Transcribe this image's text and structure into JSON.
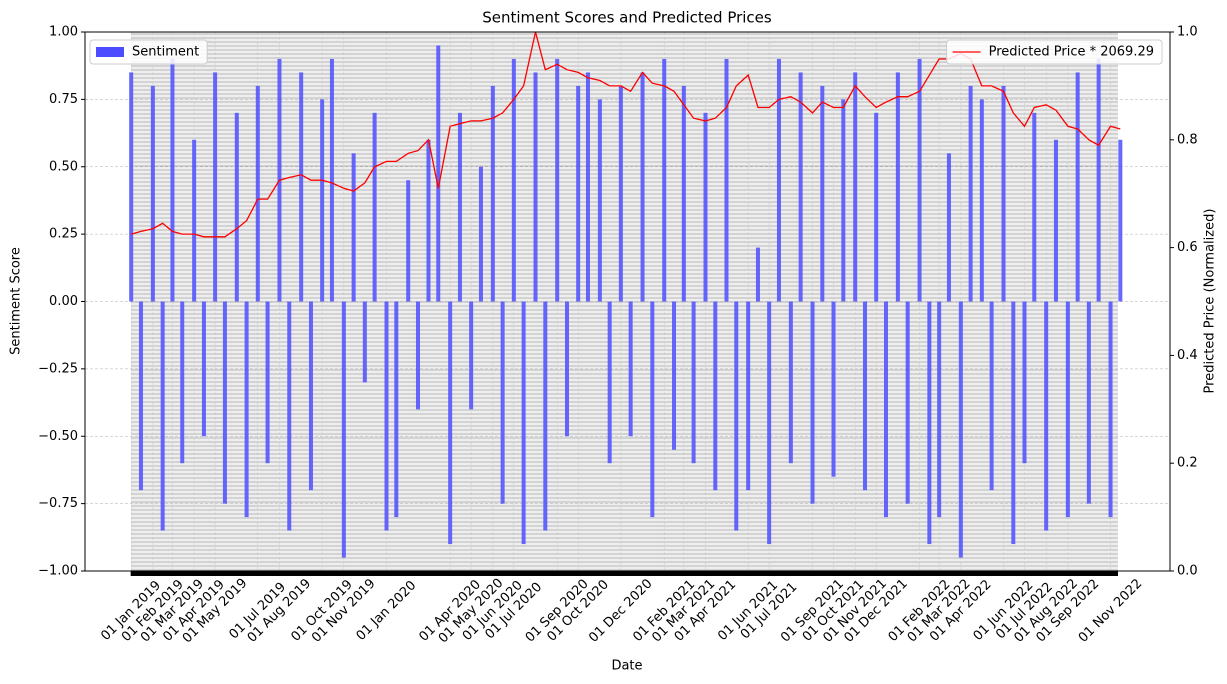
{
  "chart_data": {
    "type": "bar_line",
    "title": "Sentiment Scores and Predicted Prices",
    "xlabel": "Date",
    "ylabel": "Sentiment Score",
    "y2label": "Predicted Price (Normalized)",
    "x": [
      "2019-01-01",
      "2019-01-15",
      "2019-02-01",
      "2019-02-15",
      "2019-03-01",
      "2019-03-15",
      "2019-04-01",
      "2019-04-15",
      "2019-05-01",
      "2019-05-15",
      "2019-06-01",
      "2019-06-15",
      "2019-07-01",
      "2019-07-15",
      "2019-08-01",
      "2019-08-15",
      "2019-09-01",
      "2019-09-15",
      "2019-10-01",
      "2019-10-15",
      "2019-11-01",
      "2019-11-15",
      "2019-12-01",
      "2019-12-15",
      "2020-01-01",
      "2020-01-15",
      "2020-02-01",
      "2020-02-15",
      "2020-03-01",
      "2020-03-15",
      "2020-04-01",
      "2020-04-15",
      "2020-05-01",
      "2020-05-15",
      "2020-06-01",
      "2020-06-15",
      "2020-07-01",
      "2020-07-15",
      "2020-08-01",
      "2020-08-15",
      "2020-09-01",
      "2020-09-15",
      "2020-10-01",
      "2020-10-15",
      "2020-11-01",
      "2020-11-15",
      "2020-12-01",
      "2020-12-15",
      "2021-01-01",
      "2021-01-15",
      "2021-02-01",
      "2021-02-15",
      "2021-03-01",
      "2021-03-15",
      "2021-04-01",
      "2021-04-15",
      "2021-05-01",
      "2021-05-15",
      "2021-06-01",
      "2021-06-15",
      "2021-07-01",
      "2021-07-15",
      "2021-08-01",
      "2021-08-15",
      "2021-09-01",
      "2021-09-15",
      "2021-10-01",
      "2021-10-15",
      "2021-11-01",
      "2021-11-15",
      "2021-12-01",
      "2021-12-15",
      "2022-01-01",
      "2022-01-15",
      "2022-02-01",
      "2022-02-15",
      "2022-03-01",
      "2022-03-15",
      "2022-04-01",
      "2022-04-15",
      "2022-05-01",
      "2022-05-15",
      "2022-06-01",
      "2022-06-15",
      "2022-07-01",
      "2022-07-15",
      "2022-08-01",
      "2022-08-15",
      "2022-09-01",
      "2022-09-15",
      "2022-10-01",
      "2022-10-15",
      "2022-11-01",
      "2022-11-15"
    ],
    "series": [
      {
        "name": "Sentiment",
        "type": "bar",
        "color": "#4d4dff",
        "legend": "upper left",
        "values": [
          0.85,
          -0.7,
          0.8,
          -0.85,
          0.9,
          -0.6,
          0.6,
          -0.5,
          0.85,
          -0.75,
          0.7,
          -0.8,
          0.8,
          -0.6,
          0.9,
          -0.85,
          0.85,
          -0.7,
          0.75,
          0.9,
          -0.95,
          0.55,
          -0.3,
          0.7,
          -0.85,
          -0.8,
          0.45,
          -0.4,
          0.6,
          0.95,
          -0.9,
          0.7,
          -0.4,
          0.5,
          0.8,
          -0.75,
          0.9,
          -0.9,
          0.85,
          -0.85,
          0.9,
          -0.5,
          0.8,
          0.85,
          0.75,
          -0.6,
          0.8,
          -0.5,
          0.85,
          -0.8,
          0.9,
          -0.55,
          0.8,
          -0.6,
          0.7,
          -0.7,
          0.9,
          -0.85,
          -0.7,
          0.2,
          -0.9,
          0.9,
          -0.6,
          0.85,
          -0.75,
          0.8,
          -0.65,
          0.75,
          0.85,
          -0.7,
          0.7,
          -0.8,
          0.85,
          -0.75,
          0.9,
          -0.9,
          -0.8,
          0.55,
          -0.95,
          0.8,
          0.75,
          -0.7,
          0.8,
          -0.9,
          -0.6,
          0.7,
          -0.85,
          0.6,
          -0.8,
          0.85,
          -0.75,
          0.9,
          -0.8,
          0.6
        ]
      },
      {
        "name": "Predicted Price * 2069.29",
        "type": "line",
        "axis": "y2",
        "color": "#ff0000",
        "legend": "upper right",
        "values": [
          0.625,
          0.63,
          0.635,
          0.645,
          0.63,
          0.625,
          0.625,
          0.62,
          0.62,
          0.62,
          0.635,
          0.65,
          0.69,
          0.69,
          0.725,
          0.73,
          0.735,
          0.725,
          0.725,
          0.72,
          0.71,
          0.705,
          0.72,
          0.75,
          0.76,
          0.76,
          0.775,
          0.78,
          0.8,
          0.71,
          0.825,
          0.83,
          0.835,
          0.835,
          0.84,
          0.85,
          0.875,
          0.9,
          1.0,
          0.93,
          0.94,
          0.93,
          0.925,
          0.915,
          0.91,
          0.9,
          0.9,
          0.89,
          0.925,
          0.905,
          0.9,
          0.89,
          0.865,
          0.84,
          0.835,
          0.84,
          0.86,
          0.9,
          0.92,
          0.86,
          0.86,
          0.875,
          0.88,
          0.87,
          0.85,
          0.87,
          0.86,
          0.86,
          0.9,
          0.88,
          0.86,
          0.87,
          0.88,
          0.88,
          0.89,
          0.92,
          0.95,
          0.95,
          0.96,
          0.95,
          0.9,
          0.9,
          0.89,
          0.85,
          0.825,
          0.86,
          0.865,
          0.855,
          0.825,
          0.82,
          0.8,
          0.79,
          0.825,
          0.82
        ]
      }
    ],
    "xlim": [
      "2018-10-27",
      "2023-01-25"
    ],
    "xticks": [
      {
        "value": "2019-01-01",
        "label": "01 Jan 2019"
      },
      {
        "value": "2019-02-01",
        "label": "01 Feb 2019"
      },
      {
        "value": "2019-03-01",
        "label": "01 Mar 2019"
      },
      {
        "value": "2019-04-01",
        "label": "01 Apr 2019"
      },
      {
        "value": "2019-05-01",
        "label": "01 May 2019"
      },
      {
        "value": "2019-07-01",
        "label": "01 Jul 2019"
      },
      {
        "value": "2019-08-01",
        "label": "01 Aug 2019"
      },
      {
        "value": "2019-10-01",
        "label": "01 Oct 2019"
      },
      {
        "value": "2019-11-01",
        "label": "01 Nov 2019"
      },
      {
        "value": "2020-01-01",
        "label": "01 Jan 2020"
      },
      {
        "value": "2020-04-01",
        "label": "01 Apr 2020"
      },
      {
        "value": "2020-05-01",
        "label": "01 May 2020"
      },
      {
        "value": "2020-06-01",
        "label": "01 Jun 2020"
      },
      {
        "value": "2020-07-01",
        "label": "01 Jul 2020"
      },
      {
        "value": "2020-09-01",
        "label": "01 Sep 2020"
      },
      {
        "value": "2020-10-01",
        "label": "01 Oct 2020"
      },
      {
        "value": "2020-12-01",
        "label": "01 Dec 2020"
      },
      {
        "value": "2021-02-01",
        "label": "01 Feb 2021"
      },
      {
        "value": "2021-03-01",
        "label": "01 Mar 2021"
      },
      {
        "value": "2021-04-01",
        "label": "01 Apr 2021"
      },
      {
        "value": "2021-06-01",
        "label": "01 Jun 2021"
      },
      {
        "value": "2021-07-01",
        "label": "01 Jul 2021"
      },
      {
        "value": "2021-09-01",
        "label": "01 Sep 2021"
      },
      {
        "value": "2021-10-01",
        "label": "01 Oct 2021"
      },
      {
        "value": "2021-11-01",
        "label": "01 Nov 2021"
      },
      {
        "value": "2021-12-01",
        "label": "01 Dec 2021"
      },
      {
        "value": "2022-02-01",
        "label": "01 Feb 2022"
      },
      {
        "value": "2022-03-01",
        "label": "01 Mar 2022"
      },
      {
        "value": "2022-04-01",
        "label": "01 Apr 2022"
      },
      {
        "value": "2022-06-01",
        "label": "01 Jun 2022"
      },
      {
        "value": "2022-07-01",
        "label": "01 Jul 2022"
      },
      {
        "value": "2022-08-01",
        "label": "01 Aug 2022"
      },
      {
        "value": "2022-09-01",
        "label": "01 Sep 2022"
      },
      {
        "value": "2022-11-01",
        "label": "01 Nov 2022"
      }
    ],
    "ylim": [
      -1,
      1
    ],
    "yticks": [
      {
        "value": -1,
        "label": "−1.00"
      },
      {
        "value": -0.75,
        "label": "−0.75"
      },
      {
        "value": -0.5,
        "label": "−0.50"
      },
      {
        "value": -0.25,
        "label": "−0.25"
      },
      {
        "value": 0,
        "label": "0.00"
      },
      {
        "value": 0.25,
        "label": "0.25"
      },
      {
        "value": 0.5,
        "label": "0.50"
      },
      {
        "value": 0.75,
        "label": "0.75"
      },
      {
        "value": 1,
        "label": "1.00"
      }
    ],
    "y2lim": [
      0,
      1
    ],
    "y2ticks": [
      {
        "value": 0,
        "label": "0.0"
      },
      {
        "value": 0.2,
        "label": "0.2"
      },
      {
        "value": 0.4,
        "label": "0.4"
      },
      {
        "value": 0.6,
        "label": "0.6"
      },
      {
        "value": 0.8,
        "label": "0.8"
      },
      {
        "value": 1,
        "label": "1.0"
      }
    ],
    "grid": true
  }
}
